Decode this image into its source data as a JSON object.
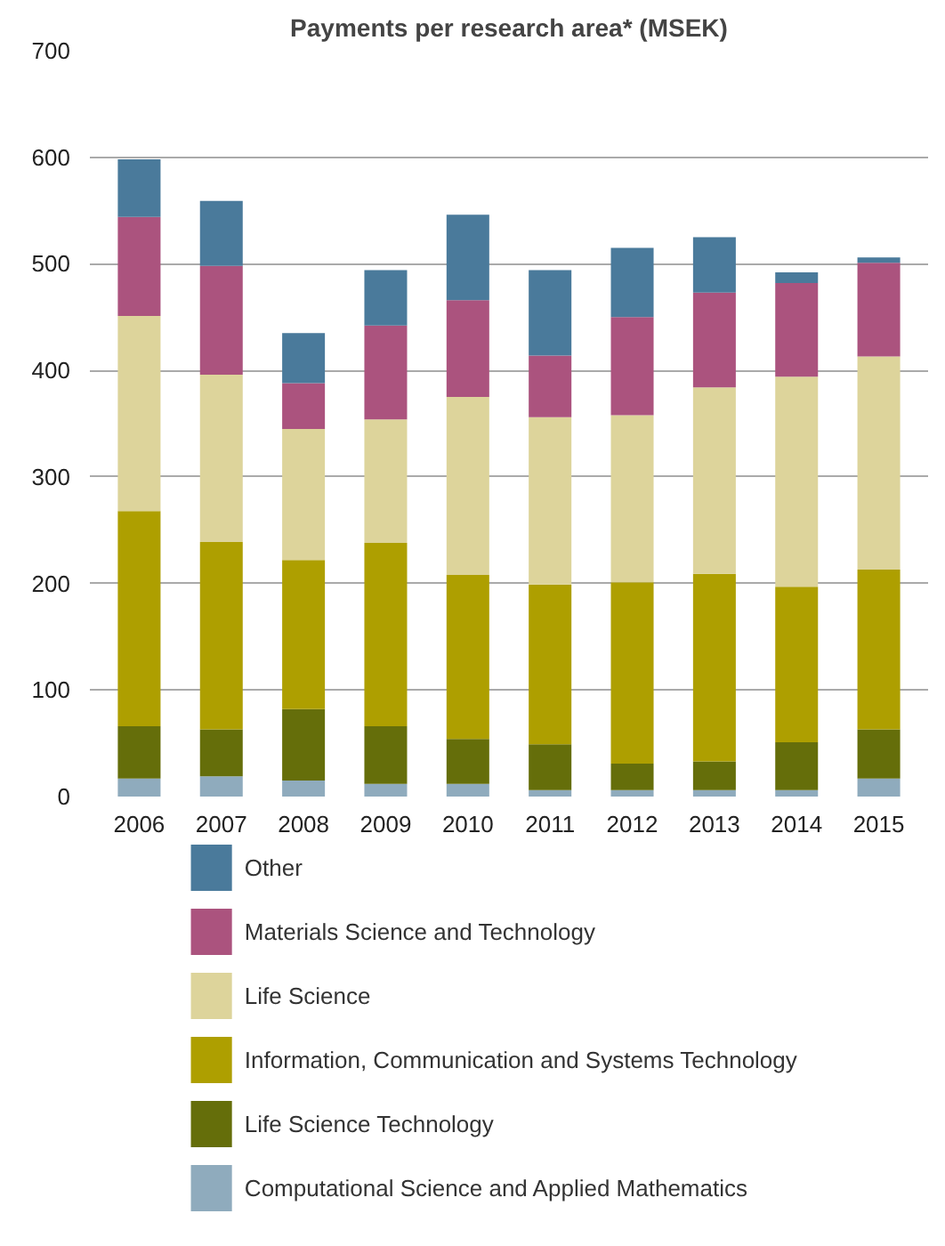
{
  "chart_data": {
    "type": "bar",
    "title": "Payments per research area* (MSEK)",
    "stacked": true,
    "categories": [
      "2006",
      "2007",
      "2008",
      "2009",
      "2010",
      "2011",
      "2012",
      "2013",
      "2014",
      "2015"
    ],
    "series": [
      {
        "name": "Computational Science and Applied Mathematics",
        "color": "#8fabbd",
        "values": [
          17,
          19,
          15,
          12,
          12,
          6,
          6,
          6,
          6,
          17
        ]
      },
      {
        "name": "Life Science Technology",
        "color": "#656e0a",
        "values": [
          49,
          44,
          67,
          54,
          42,
          43,
          25,
          27,
          45,
          46
        ]
      },
      {
        "name": "Information, Communication and Systems Technology",
        "color": "#ae9f00",
        "values": [
          202,
          176,
          140,
          172,
          154,
          150,
          170,
          176,
          146,
          150
        ]
      },
      {
        "name": "Life Science",
        "color": "#ddd49b",
        "values": [
          183,
          157,
          123,
          116,
          167,
          157,
          157,
          175,
          197,
          200
        ]
      },
      {
        "name": "Materials Science and Technology",
        "color": "#ab537e",
        "values": [
          93,
          102,
          43,
          88,
          91,
          58,
          92,
          89,
          88,
          88
        ]
      },
      {
        "name": "Other",
        "color": "#4a7a9b",
        "values": [
          54,
          61,
          47,
          52,
          80,
          80,
          65,
          52,
          10,
          5
        ]
      }
    ],
    "ylim": [
      0,
      700
    ],
    "yticks": [
      0,
      100,
      200,
      300,
      400,
      500,
      600,
      700
    ],
    "grid": "y",
    "legend": "bottom"
  }
}
